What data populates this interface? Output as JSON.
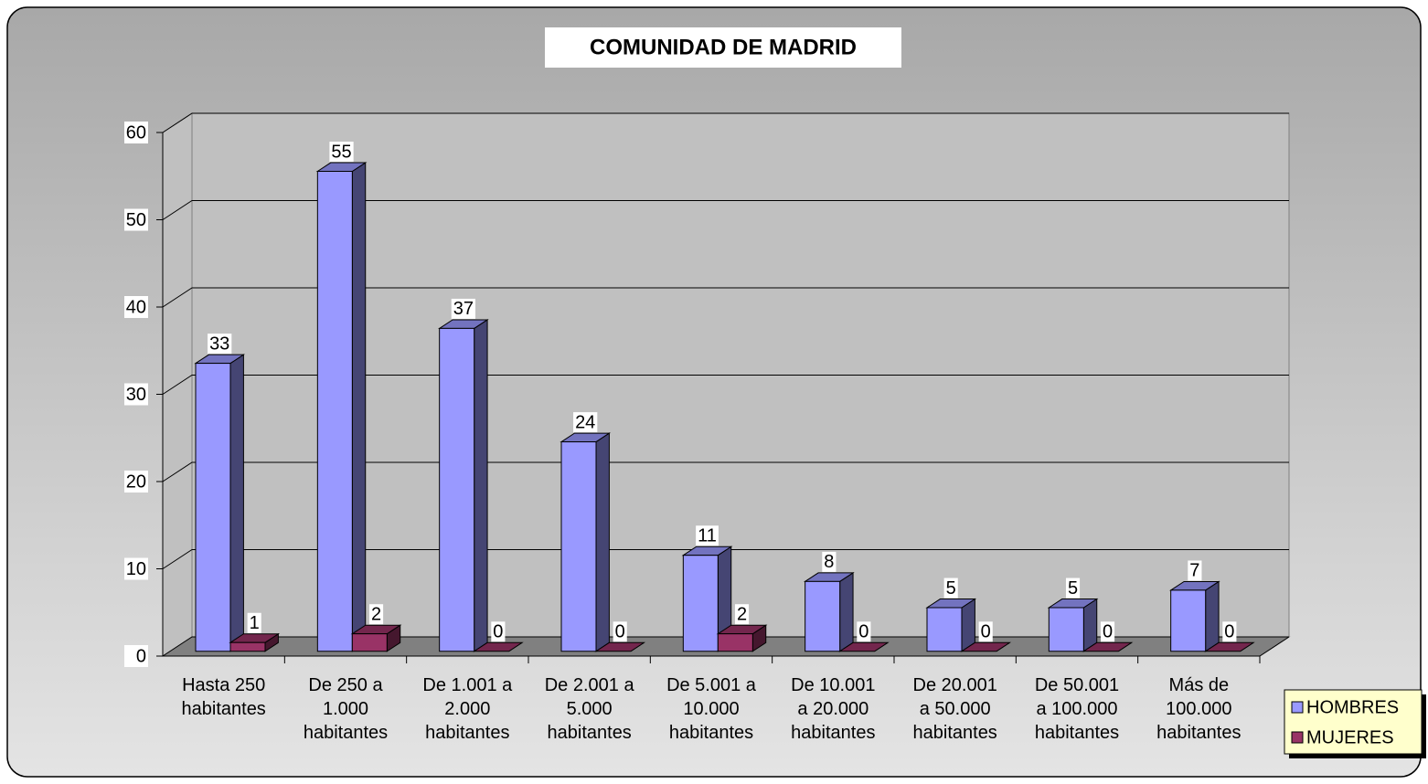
{
  "chart_data": {
    "type": "bar3d",
    "title": "COMUNIDAD DE MADRID",
    "categories": [
      "Hasta 250\nhabitantes",
      "De 250 a\n1.000\nhabitantes",
      "De 1.001 a\n2.000\nhabitantes",
      "De 2.001 a\n5.000\nhabitantes",
      "De 5.001 a\n10.000\nhabitantes",
      "De 10.001\na 20.000\nhabitantes",
      "De 20.001\na 50.000\nhabitantes",
      "De 50.001\na 100.000\nhabitantes",
      "Más de\n100.000\nhabitantes"
    ],
    "series": [
      {
        "name": "HOMBRES",
        "color": "#9999ff",
        "values": [
          33,
          55,
          37,
          24,
          11,
          8,
          5,
          5,
          7
        ]
      },
      {
        "name": "MUJERES",
        "color": "#993366",
        "values": [
          1,
          2,
          0,
          0,
          2,
          0,
          0,
          0,
          0
        ]
      }
    ],
    "ylim": [
      0,
      60
    ],
    "yticks": [
      0,
      10,
      20,
      30,
      40,
      50,
      60
    ],
    "grid": true,
    "legend": "bottom-right"
  }
}
